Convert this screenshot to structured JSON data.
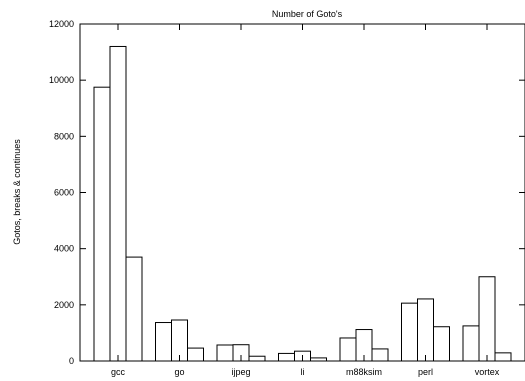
{
  "chart_data": {
    "type": "bar",
    "title": "Number of Goto's",
    "xlabel": "",
    "ylabel": "Gotos, breaks & continues",
    "ylim": [
      0,
      12000
    ],
    "yticks": [
      0,
      2000,
      4000,
      6000,
      8000,
      10000,
      12000
    ],
    "grid": false,
    "legend": "none",
    "categories": [
      "gcc",
      "go",
      "ijpeg",
      "li",
      "m88ksim",
      "perl",
      "vortex"
    ],
    "series": [
      {
        "values": [
          9750,
          1370,
          570,
          270,
          820,
          2060,
          1250
        ]
      },
      {
        "values": [
          11200,
          1460,
          580,
          350,
          1120,
          2210,
          3000
        ]
      },
      {
        "values": [
          3700,
          460,
          170,
          110,
          430,
          1220,
          290
        ]
      }
    ]
  }
}
